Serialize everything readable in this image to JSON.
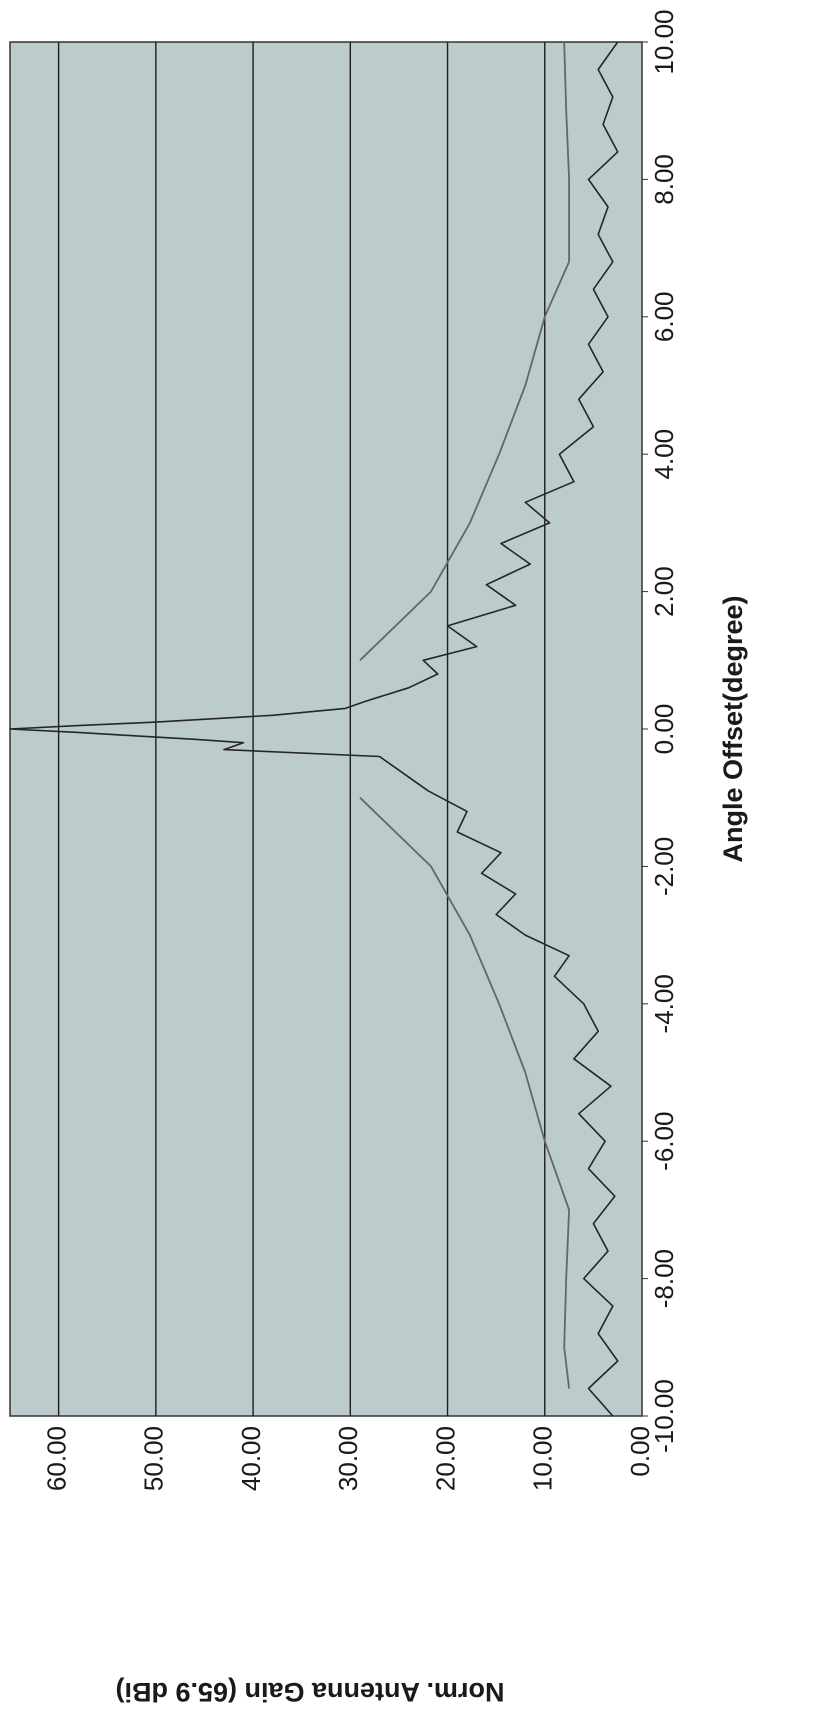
{
  "chart_data": {
    "type": "line",
    "title": "",
    "xlabel": "Angle Offset(degree)",
    "ylabel": "Norm. Antenna Gain (65.9 dBi)",
    "xlim": [
      -10,
      10
    ],
    "ylim": [
      0,
      65
    ],
    "xticks": [
      "-10.00",
      "-8.00",
      "-6.00",
      "-4.00",
      "-2.00",
      "0.00",
      "2.00",
      "4.00",
      "6.00",
      "8.00",
      "10.00"
    ],
    "yticks": [
      "0.00",
      "10.00",
      "20.00",
      "30.00",
      "40.00",
      "50.00",
      "60.00"
    ],
    "grid": "horizontal",
    "orientation": "rotated 90° clockwise",
    "background_color": "#bccbcc",
    "series": [
      {
        "role": "measured pattern",
        "color": "#262626",
        "x": [
          -10.0,
          -9.6,
          -9.2,
          -8.8,
          -8.4,
          -8.0,
          -7.6,
          -7.2,
          -6.8,
          -6.4,
          -6.0,
          -5.6,
          -5.2,
          -4.8,
          -4.4,
          -4.0,
          -3.6,
          -3.3,
          -3.0,
          -2.7,
          -2.4,
          -2.1,
          -1.8,
          -1.5,
          -1.2,
          -0.9,
          -0.6,
          -0.4,
          -0.3,
          -0.2,
          -0.15,
          -0.1,
          -0.05,
          0.0,
          0.05,
          0.1,
          0.15,
          0.2,
          0.3,
          0.4,
          0.6,
          0.8,
          1.0,
          1.2,
          1.5,
          1.8,
          2.1,
          2.4,
          2.7,
          3.0,
          3.3,
          3.6,
          4.0,
          4.4,
          4.8,
          5.2,
          5.6,
          6.0,
          6.4,
          6.8,
          7.2,
          7.6,
          8.0,
          8.4,
          8.8,
          9.2,
          9.6,
          10.0
        ],
        "y": [
          3.0,
          5.5,
          2.5,
          4.5,
          3.0,
          6.0,
          3.5,
          5.0,
          2.8,
          5.5,
          3.8,
          6.5,
          3.2,
          7.0,
          4.5,
          6.0,
          9.0,
          7.5,
          12.0,
          15.0,
          13.0,
          16.5,
          14.5,
          19.0,
          18.0,
          22.0,
          25.0,
          27.0,
          43.0,
          41.0,
          46.0,
          52.0,
          58.0,
          65.0,
          58.0,
          50.0,
          44.0,
          38.0,
          30.5,
          28.5,
          24.0,
          21.0,
          22.5,
          17.0,
          20.0,
          13.0,
          16.0,
          11.5,
          14.5,
          9.5,
          12.0,
          7.0,
          8.5,
          5.0,
          6.5,
          4.0,
          5.5,
          3.5,
          5.0,
          3.0,
          4.5,
          3.5,
          5.5,
          2.5,
          4.0,
          3.0,
          4.5,
          2.5
        ]
      },
      {
        "role": "envelope (left)",
        "color": "#666666",
        "x": [
          -9.6,
          -9.0,
          -8.0,
          -7.0,
          -6.0,
          -5.0,
          -4.0,
          -3.0,
          -2.0,
          -1.0
        ],
        "y": [
          7.5,
          8.0,
          7.8,
          7.5,
          10.0,
          12.0,
          14.7,
          17.7,
          21.7,
          29.0
        ]
      },
      {
        "role": "envelope (right)",
        "color": "#666666",
        "x": [
          1.0,
          2.0,
          3.0,
          4.0,
          5.0,
          6.0,
          6.8,
          8.0,
          9.0,
          10.0
        ],
        "y": [
          29.0,
          21.7,
          17.7,
          14.7,
          12.0,
          10.0,
          7.5,
          7.5,
          7.8,
          8.0
        ]
      }
    ]
  }
}
